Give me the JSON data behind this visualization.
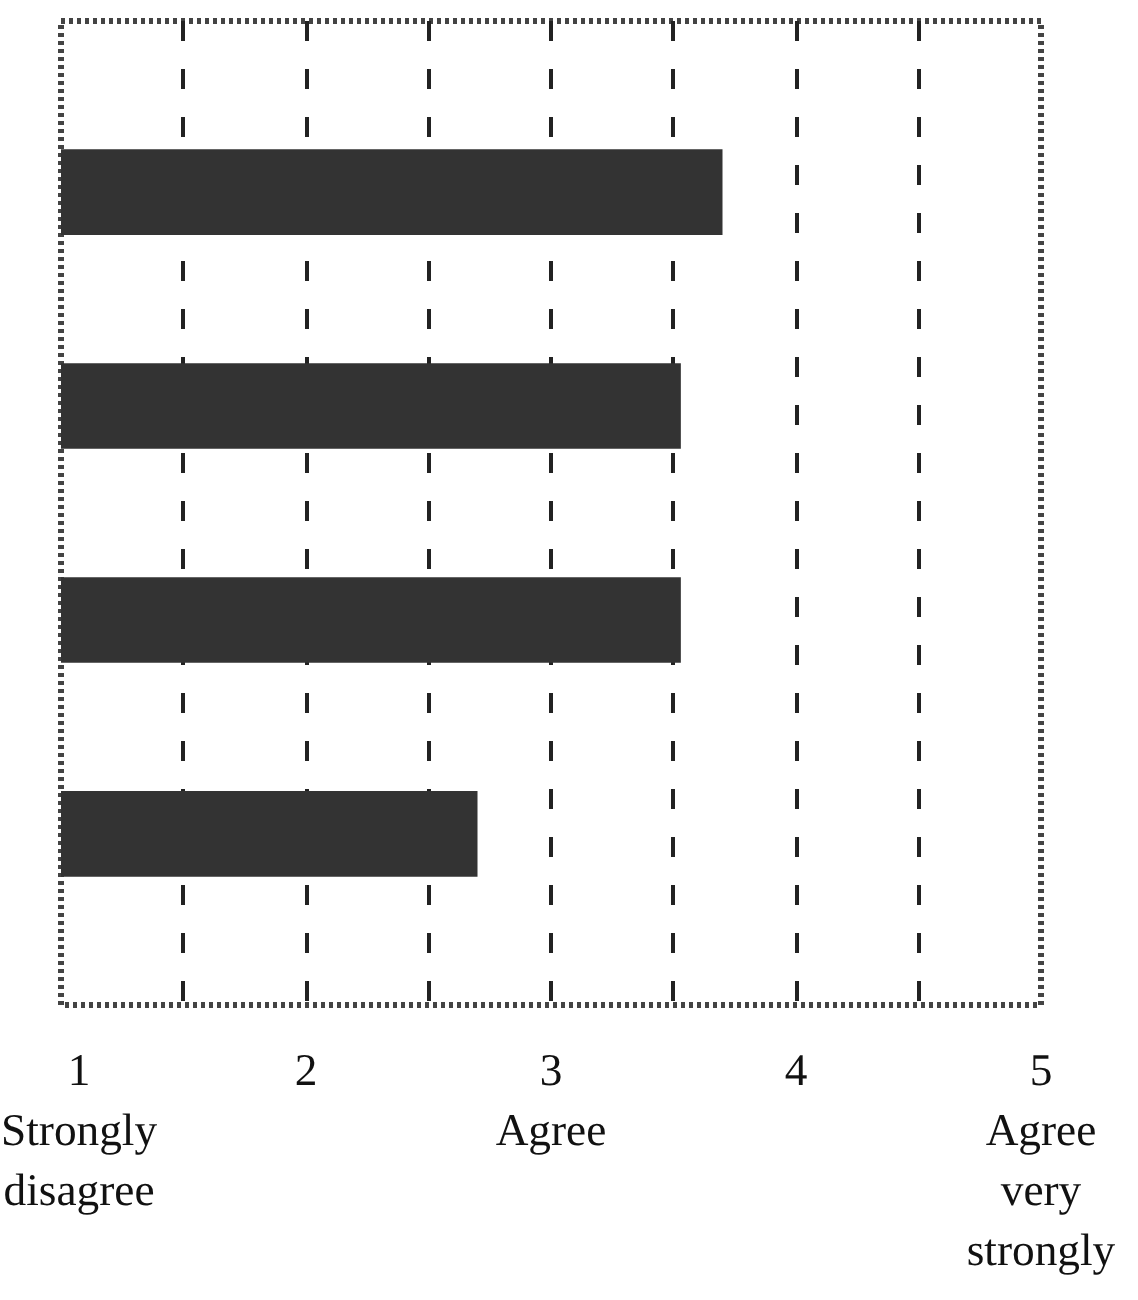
{
  "chart_data": {
    "type": "bar",
    "orientation": "horizontal",
    "relative": false,
    "categories": [
      null,
      null,
      null,
      null
    ],
    "values": [
      3.7,
      3.53,
      3.53,
      2.7
    ],
    "color": "#333333",
    "xlim": [
      1,
      5
    ],
    "xticks": [
      {
        "value": 1,
        "label": "1\nStrongly\ndisagree"
      },
      {
        "value": 1.5,
        "label": null
      },
      {
        "value": 2,
        "label": "2"
      },
      {
        "value": 2.5,
        "label": null
      },
      {
        "value": 3,
        "label": "3\nAgree"
      },
      {
        "value": 3.5,
        "label": null
      },
      {
        "value": 4,
        "label": "4"
      },
      {
        "value": 4.5,
        "label": null
      },
      {
        "value": 5,
        "label": "5\nAgree\nvery\nstrongly"
      }
    ],
    "grid": "x",
    "line_style": "dashed"
  }
}
